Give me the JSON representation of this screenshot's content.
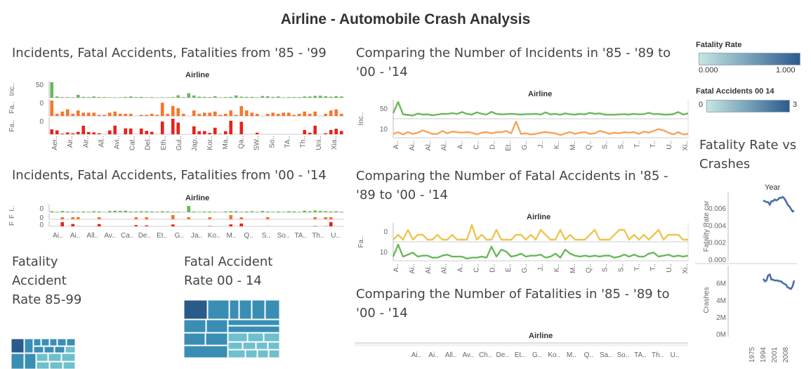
{
  "dashboard": {
    "title": "Airline - Automobile Crash Analysis"
  },
  "sheets": {
    "incidents_85_99": "Incidents, Fatal Accidents, Fatalities from '85 - '99",
    "incidents_00_14": "Incidents, Fatal Accidents, Fatalities from '00 - '14",
    "compare_incidents": "Comparing the Number of Incidents in '85 - '89 to '00 - '14",
    "compare_fatal_accidents": "Comparing the Number of Fatal Accidents in '85 - '89 to '00 - '14",
    "compare_fatalities": "Comparing the Number of Fatalities in '85 - '89 to '00 - '14",
    "fatality_accident_rate": "Fatality Accident Rate 85-99",
    "fatal_accident_rate_00_14": "Fatal Accident Rate 00 - 14",
    "fatality_rate_vs_crashes": "Fatality Rate vs Crashes"
  },
  "legends": {
    "fatality_rate": {
      "title": "Fatality Rate",
      "min": "0.000",
      "max": "1.000"
    },
    "fatal_accidents_00_14": {
      "title": "Fatal Accidents 00 14",
      "min": "0",
      "max": "3"
    }
  },
  "colors": {
    "green": "#6ab85a",
    "orange": "#f5772e",
    "red": "#e8221a",
    "light_orange": "#f4a55a",
    "yellow": "#eec44f",
    "blue": "#4a6fa5",
    "teal_dark": "#2a5a8a",
    "teal_mid": "#3a8eb4",
    "teal_light": "#6fbfcc"
  },
  "chart_data": [
    {
      "id": "bars_85_99",
      "type": "bar",
      "header": "Airline",
      "row_labels": [
        "Inc..",
        "Fa..",
        "Fa.."
      ],
      "row_ticks": [
        "50",
        "0",
        "0"
      ],
      "x_ticks": [
        "Aer..",
        "Air..",
        "Air..",
        "All..",
        "Avi..",
        "Cat..",
        "Del..",
        "Eth..",
        "Gul..",
        "Jap..",
        "Kor..",
        "Ma..",
        "Qa..",
        "SW..",
        "So..",
        "TA..",
        "Th..",
        "Uni..",
        "Xia.."
      ],
      "series": [
        {
          "name": "Incidents",
          "values": [
            76,
            6,
            3,
            3,
            2,
            14,
            4,
            3,
            6,
            3,
            3,
            2,
            2,
            2,
            4,
            6,
            3,
            4,
            2,
            3,
            1,
            2,
            2,
            3,
            12,
            3,
            22,
            11,
            5,
            4,
            3,
            7,
            2,
            3,
            4,
            11,
            5,
            4,
            4,
            2,
            8,
            7,
            4,
            6,
            2,
            3,
            3,
            3,
            6,
            6,
            9,
            10,
            7,
            5,
            8,
            6
          ]
        },
        {
          "name": "Fatal Accidents",
          "values": [
            14,
            2,
            4,
            6,
            2,
            5,
            3,
            3,
            3,
            1,
            1,
            3,
            4,
            2,
            2,
            2,
            0,
            1,
            1,
            2,
            1,
            12,
            2,
            9,
            7,
            2,
            0,
            5,
            2,
            3,
            3,
            4,
            1,
            2,
            5,
            1,
            9,
            5,
            3,
            2,
            0,
            2,
            3,
            2,
            3,
            3,
            1,
            2,
            4,
            2,
            4,
            0,
            2,
            5,
            6,
            2
          ]
        },
        {
          "name": "Fatalities",
          "values": [
            128,
            100,
            16,
            48,
            26,
            64,
            224,
            58,
            48,
            26,
            0,
            99,
            228,
            0,
            156,
            152,
            0,
            150,
            90,
            64,
            0,
            336,
            0,
            408,
            308,
            0,
            0,
            210,
            80,
            84,
            35,
            171,
            7,
            80,
            356,
            0,
            329,
            0,
            0,
            41,
            0,
            0,
            0,
            0,
            0,
            0,
            0,
            0,
            112,
            40,
            225,
            0,
            26,
            112,
            146,
            85
          ]
        }
      ]
    },
    {
      "id": "bars_00_14",
      "type": "bar",
      "header": "Airline",
      "row_labels": [
        "I..",
        "F",
        "F"
      ],
      "row_ticks": [
        "0",
        "0",
        "0"
      ],
      "x_ticks": [
        "Ai..",
        "Ai..",
        "All..",
        "Av..",
        "Ca..",
        "De..",
        "Et..",
        "G..",
        "Ja..",
        "Ko..",
        "M..",
        "Q..",
        "S..",
        "So..",
        "TA..",
        "Th..",
        "U.."
      ],
      "series": [
        {
          "name": "Incidents",
          "values": [
            4,
            2,
            5,
            3,
            3,
            2,
            3,
            2,
            4,
            3,
            1,
            5,
            6,
            5,
            6,
            3,
            3,
            4,
            4,
            3,
            2,
            4,
            3,
            2,
            2,
            1,
            24,
            3,
            2,
            3,
            3,
            2,
            1,
            3,
            4,
            4,
            2,
            3,
            4,
            2,
            5,
            3,
            2,
            3,
            2,
            4,
            3,
            2,
            6,
            4,
            7,
            5,
            4,
            3,
            4,
            2
          ]
        },
        {
          "name": "Fatal Accidents",
          "values": [
            0,
            0,
            1,
            0,
            1,
            1,
            0,
            0,
            0,
            1,
            0,
            0,
            0,
            0,
            0,
            0,
            1,
            0,
            1,
            0,
            0,
            0,
            0,
            2,
            0,
            0,
            1,
            0,
            0,
            0,
            1,
            0,
            0,
            0,
            2,
            0,
            1,
            0,
            0,
            0,
            0,
            1,
            0,
            0,
            0,
            0,
            0,
            0,
            0,
            0,
            1,
            0,
            1,
            1,
            0,
            0
          ]
        },
        {
          "name": "Fatalities",
          "values": [
            0,
            0,
            88,
            0,
            50,
            2,
            0,
            0,
            0,
            48,
            0,
            0,
            0,
            0,
            0,
            0,
            26,
            0,
            20,
            0,
            0,
            0,
            0,
            40,
            0,
            0,
            2,
            0,
            0,
            0,
            8,
            0,
            0,
            0,
            41,
            0,
            60,
            0,
            0,
            0,
            0,
            2,
            0,
            0,
            0,
            0,
            0,
            0,
            0,
            0,
            8,
            0,
            4,
            90,
            0,
            0
          ]
        }
      ]
    },
    {
      "id": "lines_incidents",
      "type": "line",
      "header": "Airline",
      "row_label": "Inc..",
      "row_label2": "Inc..",
      "y_ticks_top": [
        "50"
      ],
      "y_ticks_bottom": [
        "10"
      ],
      "x_ticks": [
        "A..",
        "Ai..",
        "Al..",
        "Al..",
        "A..",
        "C..",
        "D..",
        "Et..",
        "G..",
        "J..",
        "K..",
        "M..",
        "Q..",
        "S..",
        "S..",
        "T..",
        "T..",
        "U..",
        "Xi.."
      ],
      "series": [
        {
          "name": "'85 - '99",
          "values": [
            18,
            76,
            12,
            9,
            6,
            16,
            11,
            12,
            7,
            11,
            15,
            14,
            18,
            14,
            24,
            14,
            11,
            22,
            15,
            11,
            25,
            14,
            12,
            13,
            15,
            13,
            11,
            13,
            13,
            15,
            11,
            22,
            12,
            14,
            10,
            17,
            12,
            11,
            14,
            12,
            20,
            15,
            17,
            11,
            10,
            10,
            12,
            13,
            11,
            14,
            12,
            13,
            20,
            13,
            14,
            11,
            11,
            13,
            24,
            11,
            17
          ]
        },
        {
          "name": "'00 - '14",
          "values": [
            3,
            6,
            2,
            6,
            3,
            5,
            9,
            6,
            3,
            3,
            8,
            4,
            7,
            6,
            5,
            6,
            5,
            2,
            5,
            6,
            4,
            6,
            6,
            8,
            4,
            24,
            3,
            4,
            2,
            3,
            5,
            6,
            5,
            4,
            1,
            4,
            6,
            3,
            5,
            6,
            3,
            4,
            8,
            6,
            3,
            5,
            4,
            6,
            5,
            6,
            3,
            7,
            5,
            8,
            11,
            9,
            5,
            2,
            6,
            2,
            3
          ]
        }
      ]
    },
    {
      "id": "lines_fatal_accidents",
      "type": "line",
      "header": "Airline",
      "row_label": "Fa..",
      "row_label2": "Fa..",
      "y_ticks_top": [
        "0"
      ],
      "y_ticks_bottom": [
        "10"
      ],
      "x_ticks": [
        "A..",
        "Ai..",
        "Al..",
        "Al..",
        "A..",
        "C..",
        "D..",
        "E..",
        "G..",
        "J..",
        "K..",
        "M..",
        "Q..",
        "S..",
        "S..",
        "T..",
        "T..",
        "U..",
        "Xi.."
      ],
      "series": [
        {
          "name": "'00 - '14",
          "values": [
            0,
            1,
            0,
            2,
            0,
            1,
            1,
            0,
            0,
            1,
            0,
            0,
            1,
            0,
            0,
            0,
            3,
            0,
            1,
            0,
            0,
            2,
            0,
            0,
            0,
            1,
            1,
            0,
            1,
            0,
            2,
            1,
            0,
            0,
            2,
            0,
            1,
            0,
            0,
            0,
            1,
            2,
            0,
            0,
            0,
            1,
            2,
            2,
            0,
            1,
            0,
            1,
            0,
            1,
            2,
            0,
            1,
            1,
            1,
            0,
            0
          ]
        },
        {
          "name": "'85 - '99",
          "values": [
            2,
            14,
            2,
            4,
            6,
            2,
            3,
            3,
            1,
            1,
            3,
            4,
            2,
            2,
            2,
            0,
            1,
            1,
            2,
            1,
            12,
            2,
            9,
            7,
            2,
            3,
            5,
            2,
            3,
            3,
            4,
            1,
            2,
            5,
            1,
            9,
            5,
            3,
            2,
            3,
            2,
            3,
            2,
            3,
            3,
            1,
            2,
            4,
            2,
            4,
            2,
            2,
            5,
            6,
            2,
            3,
            4,
            2,
            3,
            2,
            3
          ]
        }
      ]
    },
    {
      "id": "lines_fatalities",
      "type": "line",
      "header": "Airline",
      "x_ticks": [
        "Ai..",
        "Ai..",
        "All..",
        "Av..",
        "Ch..",
        "De..",
        "Et..",
        "G..",
        "Ko..",
        "M..",
        "Q..",
        "Sa..",
        "So..",
        "TA..",
        "Th..",
        "U.."
      ]
    },
    {
      "id": "fatality_rate_vs_crashes",
      "type": "line",
      "header": "Year",
      "top_ylabel": "Fatality Rate car",
      "bottom_ylabel": "Crashes",
      "top_ticks": [
        "0.006",
        "0.004",
        "0.002",
        "0.000"
      ],
      "bottom_ticks": [
        "6M",
        "4M",
        "2M",
        "0M"
      ],
      "x_ticks": [
        "1975",
        "1994",
        "2001",
        "2008"
      ],
      "x": [
        1994,
        1995,
        1996,
        1997,
        1998,
        1999,
        2000,
        2001,
        2002,
        2003,
        2004,
        2005,
        2006,
        2007,
        2008,
        2009,
        2010,
        2011,
        2012,
        2013
      ],
      "top_values": [
        0.0069,
        0.0068,
        0.0067,
        0.0067,
        0.0064,
        0.0068,
        0.0068,
        0.007,
        0.0069,
        0.007,
        0.0072,
        0.0072,
        0.0073,
        0.0071,
        0.0068,
        0.0064,
        0.0062,
        0.0059,
        0.0056,
        0.0057
      ],
      "bottom_values": [
        6.5,
        6.2,
        6.3,
        6.9,
        7.0,
        6.4,
        6.4,
        6.3,
        6.3,
        6.3,
        6.2,
        6.2,
        6.0,
        5.9,
        5.8,
        5.5,
        5.4,
        5.3,
        5.6,
        6.3
      ]
    }
  ]
}
